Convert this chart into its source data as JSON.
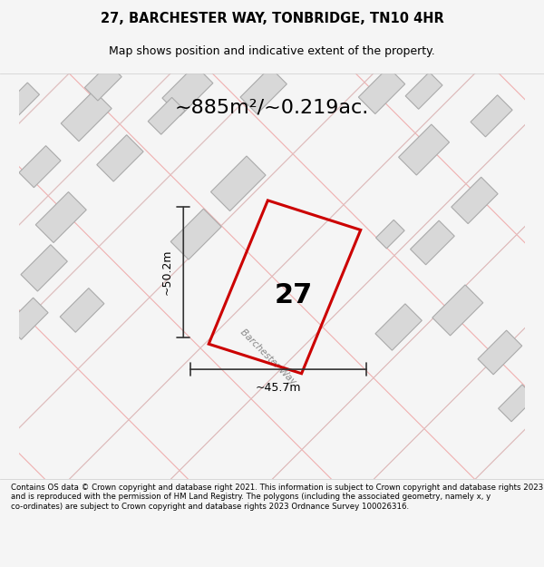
{
  "title_line1": "27, BARCHESTER WAY, TONBRIDGE, TN10 4HR",
  "title_line2": "Map shows position and indicative extent of the property.",
  "area_label": "~885m²/~0.219ac.",
  "house_number": "27",
  "dim_height": "~50.2m",
  "dim_width": "~45.7m",
  "street_label": "Barchester Way",
  "footer_text": "Contains OS data © Crown copyright and database right 2021. This information is subject to Crown copyright and database rights 2023 and is reproduced with the permission of HM Land Registry. The polygons (including the associated geometry, namely x, y co-ordinates) are subject to Crown copyright and database rights 2023 Ordnance Survey 100026316.",
  "bg_color": "#f5f5f5",
  "map_bg": "#f0eeee",
  "property_color": "#cc0000",
  "building_color": "#d8d8d8",
  "building_edge": "#aaaaaa",
  "road_line_color": "#f0b0b0",
  "road_line_color2": "#cccccc",
  "dim_line_color": "#333333",
  "title_area_bg": "#ffffff",
  "footer_area_bg": "#ffffff"
}
